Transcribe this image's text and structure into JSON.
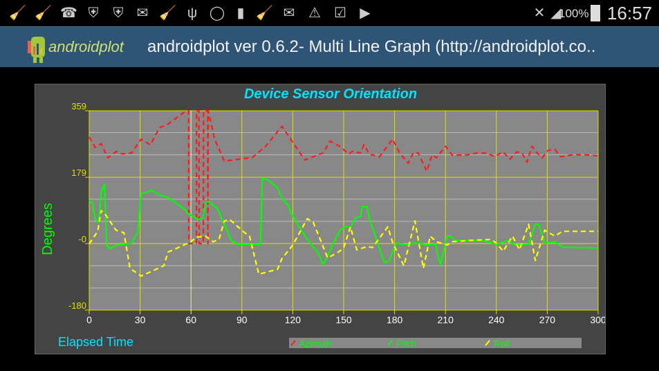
{
  "status_bar": {
    "icons": [
      "clean-master-alert-icon",
      "clean-master-alert-icon",
      "missed-call-icon",
      "shield-icon",
      "shield-icon",
      "email-icon",
      "broom-icon",
      "usb-icon",
      "whatsapp-icon",
      "battery-100-icon",
      "broom-icon",
      "email-at-icon",
      "warning-icon",
      "clipboard-check-icon",
      "clipboard-play-icon",
      "mute-icon",
      "signal-icon",
      "battery-icon"
    ],
    "battery": "100%",
    "time": "16:57"
  },
  "action_bar": {
    "logo_text": "androidplot",
    "title": "androidplot ver 0.6.2- Multi Line Graph (http://androidplot.co.."
  },
  "chart_data": {
    "type": "line",
    "title": "Device Sensor Orientation",
    "xlabel": "Elapsed Time",
    "ylabel": "Degrees",
    "xlim": [
      0,
      300
    ],
    "ylim": [
      -180,
      359
    ],
    "x_ticks": [
      "0",
      "30",
      "60",
      "90",
      "120",
      "150",
      "180",
      "210",
      "240",
      "270",
      "300"
    ],
    "x_tick_values": [
      0,
      30,
      60,
      90,
      120,
      150,
      180,
      210,
      240,
      270,
      300
    ],
    "y_ticks": [
      "359",
      "179",
      "-0",
      "-180"
    ],
    "y_tick_values": [
      359,
      179,
      0,
      -180
    ],
    "minor_y_gridlines": [
      -120,
      -60,
      60,
      120,
      240,
      300
    ],
    "grid": true,
    "legend_position": "bottom",
    "colors": {
      "background": "#444444",
      "plot": "#888888",
      "grid_major": "#e0e000",
      "grid_minor": "#bbbbbb",
      "title": "#00e5ff",
      "axis_label_y": "#00ff00",
      "axis_label_x": "#00e5ff",
      "tick_y": "#e0e000",
      "tick_x": "#ffffff"
    },
    "series": [
      {
        "name": "Azimuth",
        "color": "#ff1a1a",
        "dashed": true,
        "points": [
          [
            0,
            288
          ],
          [
            3.5,
            260
          ],
          [
            7,
            270
          ],
          [
            11,
            232
          ],
          [
            16,
            249
          ],
          [
            19.5,
            242
          ],
          [
            25,
            245
          ],
          [
            30.6,
            282
          ],
          [
            36,
            267
          ],
          [
            41.6,
            314
          ],
          [
            45.7,
            320
          ],
          [
            56.5,
            357
          ],
          [
            58.6,
            359
          ],
          [
            58.7,
            0
          ],
          [
            63.2,
            0
          ],
          [
            63.3,
            359
          ],
          [
            64.7,
            359
          ],
          [
            64.8,
            0
          ],
          [
            67.3,
            0
          ],
          [
            67.4,
            359
          ],
          [
            69.9,
            359
          ],
          [
            70,
            0
          ],
          [
            70.1,
            359
          ],
          [
            74,
            282
          ],
          [
            79.6,
            223
          ],
          [
            91.7,
            230
          ],
          [
            96,
            232
          ],
          [
            104,
            263
          ],
          [
            113.6,
            317
          ],
          [
            127,
            226
          ],
          [
            138,
            245
          ],
          [
            142,
            277
          ],
          [
            147.6,
            263
          ],
          [
            153,
            242
          ],
          [
            155,
            249
          ],
          [
            160,
            245
          ],
          [
            162,
            267
          ],
          [
            165,
            242
          ],
          [
            171,
            234
          ],
          [
            178.8,
            282
          ],
          [
            183,
            245
          ],
          [
            188,
            217
          ],
          [
            191,
            245
          ],
          [
            194,
            245
          ],
          [
            199,
            195
          ],
          [
            202,
            239
          ],
          [
            204.7,
            232
          ],
          [
            210,
            263
          ],
          [
            214,
            239
          ],
          [
            222,
            239
          ],
          [
            229,
            245
          ],
          [
            234.5,
            244
          ],
          [
            239,
            235
          ],
          [
            244,
            248
          ],
          [
            248,
            228
          ],
          [
            252,
            248
          ],
          [
            255,
            245
          ],
          [
            258,
            220
          ],
          [
            261,
            263
          ],
          [
            264,
            245
          ],
          [
            267,
            232
          ],
          [
            270.5,
            252
          ],
          [
            274.5,
            254
          ],
          [
            278,
            235
          ],
          [
            285,
            240
          ],
          [
            292,
            240
          ],
          [
            300,
            237
          ]
        ]
      },
      {
        "name": "Pitch",
        "color": "#00ff00",
        "dashed": false,
        "points": [
          [
            0,
            117
          ],
          [
            2,
            108
          ],
          [
            3.5,
            67
          ],
          [
            5.6,
            57
          ],
          [
            7,
            139
          ],
          [
            9,
            160
          ],
          [
            10.3,
            -5
          ],
          [
            12,
            -14
          ],
          [
            16,
            -5
          ],
          [
            25,
            1
          ],
          [
            28.5,
            29
          ],
          [
            30.6,
            136
          ],
          [
            33,
            136
          ],
          [
            36.7,
            144
          ],
          [
            41.6,
            131
          ],
          [
            47,
            123
          ],
          [
            56.5,
            92
          ],
          [
            58,
            82
          ],
          [
            64.7,
            64
          ],
          [
            67,
            70
          ],
          [
            68.7,
            110
          ],
          [
            70,
            114
          ],
          [
            75.5,
            95
          ],
          [
            79.6,
            52
          ],
          [
            83.7,
            8
          ],
          [
            87.6,
            -2
          ],
          [
            101,
            -2
          ],
          [
            102,
            176
          ],
          [
            105,
            173
          ],
          [
            111,
            151
          ],
          [
            113.6,
            123
          ],
          [
            117.7,
            101
          ],
          [
            119,
            82
          ],
          [
            123.8,
            45
          ],
          [
            129,
            8
          ],
          [
            134.6,
            -23
          ],
          [
            138,
            -58
          ],
          [
            142.7,
            -11
          ],
          [
            147.6,
            36
          ],
          [
            151,
            46
          ],
          [
            154,
            43
          ],
          [
            157,
            70
          ],
          [
            160,
            73
          ],
          [
            161,
            101
          ],
          [
            164,
            98
          ],
          [
            165,
            70
          ],
          [
            170,
            1
          ],
          [
            174,
            -51
          ],
          [
            176.6,
            -48
          ],
          [
            181,
            1
          ],
          [
            188,
            -4
          ],
          [
            191,
            1
          ],
          [
            195,
            1
          ],
          [
            198,
            -4
          ],
          [
            204,
            -2
          ],
          [
            207,
            -58
          ],
          [
            211,
            20
          ],
          [
            213,
            20
          ],
          [
            215.5,
            8
          ],
          [
            232,
            8
          ],
          [
            240,
            -2
          ],
          [
            246.6,
            8
          ],
          [
            251,
            -4
          ],
          [
            259,
            -2
          ],
          [
            263,
            52
          ],
          [
            265,
            52
          ],
          [
            268.5,
            1
          ],
          [
            274.5,
            5
          ],
          [
            279,
            -10
          ],
          [
            300,
            -12
          ]
        ]
      },
      {
        "name": "Roll",
        "color": "#ffff00",
        "dashed": true,
        "points": [
          [
            0,
            -1
          ],
          [
            5,
            33
          ],
          [
            7,
            89
          ],
          [
            9,
            82
          ],
          [
            15.8,
            36
          ],
          [
            20.5,
            29
          ],
          [
            24,
            -67
          ],
          [
            30.6,
            -88
          ],
          [
            44,
            -60
          ],
          [
            46.5,
            -23
          ],
          [
            52.5,
            -11
          ],
          [
            60,
            5
          ],
          [
            63,
            17
          ],
          [
            68.7,
            20
          ],
          [
            73,
            5
          ],
          [
            76.5,
            11
          ],
          [
            79.6,
            61
          ],
          [
            83,
            64
          ],
          [
            91.7,
            29
          ],
          [
            94.5,
            20
          ],
          [
            100,
            -83
          ],
          [
            104,
            -78
          ],
          [
            111,
            -70
          ],
          [
            113.6,
            -41
          ],
          [
            120,
            -4
          ],
          [
            128.5,
            67
          ],
          [
            132,
            58
          ],
          [
            140.6,
            -39
          ],
          [
            147.6,
            -21
          ],
          [
            150,
            -11
          ],
          [
            154,
            45
          ],
          [
            157.7,
            -17
          ],
          [
            164,
            -8
          ],
          [
            167,
            -11
          ],
          [
            176,
            45
          ],
          [
            179,
            1
          ],
          [
            185.5,
            -60
          ],
          [
            192,
            61
          ],
          [
            197,
            -67
          ],
          [
            201,
            20
          ],
          [
            204.6,
            5
          ],
          [
            211,
            -4
          ],
          [
            214,
            5
          ],
          [
            223.6,
            8
          ],
          [
            237,
            11
          ],
          [
            240,
            1
          ],
          [
            244,
            -21
          ],
          [
            249.5,
            20
          ],
          [
            253.6,
            -17
          ],
          [
            259,
            52
          ],
          [
            263,
            -46
          ],
          [
            268.5,
            36
          ],
          [
            274.5,
            20
          ],
          [
            279,
            33
          ],
          [
            300,
            33
          ]
        ]
      }
    ]
  }
}
